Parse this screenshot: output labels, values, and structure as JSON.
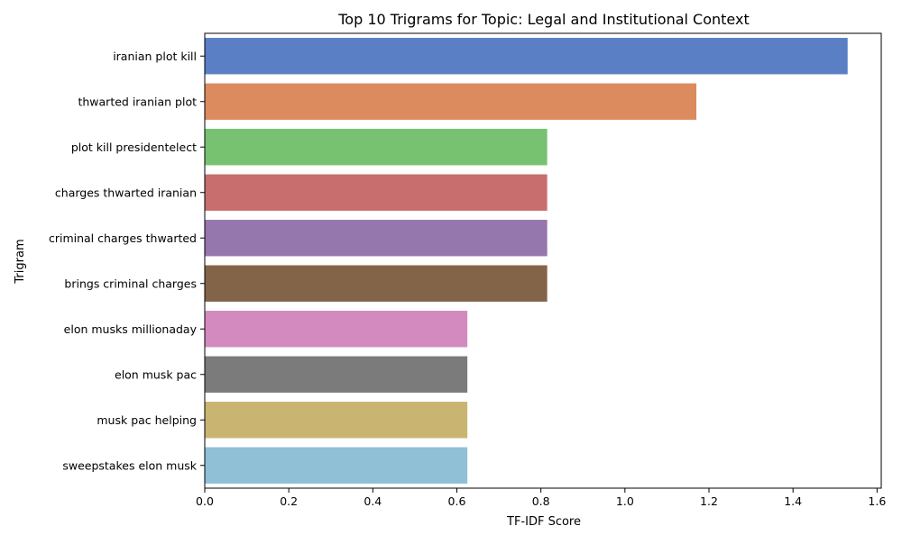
{
  "chart_data": {
    "type": "bar",
    "orientation": "horizontal",
    "title": "Top 10 Trigrams for Topic: Legal and Institutional Context",
    "xlabel": "TF-IDF Score",
    "ylabel": "Trigram",
    "xlim": [
      0,
      1.61
    ],
    "xticks": [
      0.0,
      0.2,
      0.4,
      0.6,
      0.8,
      1.0,
      1.2,
      1.4,
      1.6
    ],
    "xtick_labels": [
      "0.0",
      "0.2",
      "0.4",
      "0.6",
      "0.8",
      "1.0",
      "1.2",
      "1.4",
      "1.6"
    ],
    "grid": false,
    "categories": [
      "iranian plot kill",
      "thwarted iranian plot",
      "plot kill presidentelect",
      "charges thwarted iranian",
      "criminal charges thwarted",
      "brings criminal charges",
      "elon musks millionaday",
      "elon musk pac",
      "musk pac helping",
      "sweepstakes elon musk"
    ],
    "values": [
      1.53,
      1.17,
      0.815,
      0.815,
      0.815,
      0.815,
      0.625,
      0.625,
      0.625,
      0.625
    ],
    "colors": [
      "#5a7fc4",
      "#db8b5d",
      "#76c271",
      "#c86e6e",
      "#9576ad",
      "#836449",
      "#d28abf",
      "#7b7b7b",
      "#c9b472",
      "#8fc0d6"
    ]
  }
}
